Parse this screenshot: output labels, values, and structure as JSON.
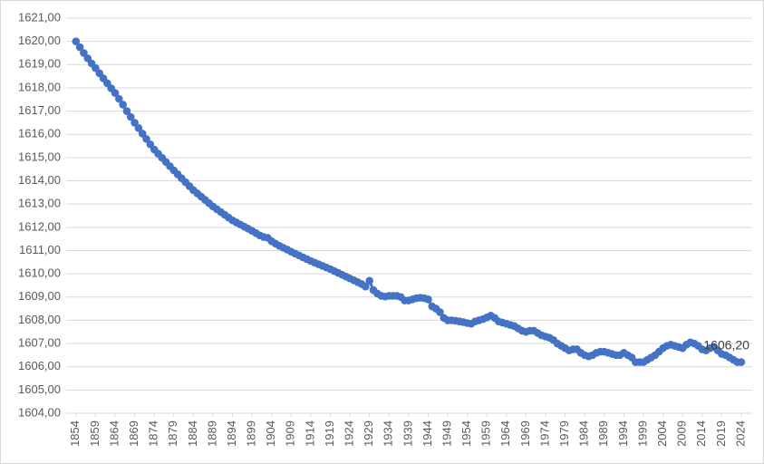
{
  "chart_data": {
    "type": "line",
    "color": "#4472c4",
    "grid": true,
    "x": [
      1854,
      1855,
      1856,
      1857,
      1858,
      1859,
      1860,
      1861,
      1862,
      1863,
      1864,
      1865,
      1866,
      1867,
      1868,
      1869,
      1870,
      1871,
      1872,
      1873,
      1874,
      1875,
      1876,
      1877,
      1878,
      1879,
      1880,
      1881,
      1882,
      1883,
      1884,
      1885,
      1886,
      1887,
      1888,
      1889,
      1890,
      1891,
      1892,
      1893,
      1894,
      1895,
      1896,
      1897,
      1898,
      1899,
      1900,
      1901,
      1902,
      1903,
      1904,
      1905,
      1906,
      1907,
      1908,
      1909,
      1910,
      1911,
      1912,
      1913,
      1914,
      1915,
      1916,
      1917,
      1918,
      1919,
      1920,
      1921,
      1922,
      1923,
      1924,
      1925,
      1926,
      1927,
      1928,
      1929,
      1930,
      1931,
      1932,
      1933,
      1934,
      1935,
      1936,
      1937,
      1938,
      1939,
      1940,
      1941,
      1942,
      1943,
      1944,
      1945,
      1946,
      1947,
      1948,
      1949,
      1950,
      1951,
      1952,
      1953,
      1954,
      1955,
      1956,
      1957,
      1958,
      1959,
      1960,
      1961,
      1962,
      1963,
      1964,
      1965,
      1966,
      1967,
      1968,
      1969,
      1970,
      1971,
      1972,
      1973,
      1974,
      1975,
      1976,
      1977,
      1978,
      1979,
      1980,
      1981,
      1982,
      1983,
      1984,
      1985,
      1986,
      1987,
      1988,
      1989,
      1990,
      1991,
      1992,
      1993,
      1994,
      1995,
      1996,
      1997,
      1998,
      1999,
      2000,
      2001,
      2002,
      2003,
      2004,
      2005,
      2006,
      2007,
      2008,
      2009,
      2010,
      2011,
      2012,
      2013,
      2014,
      2015,
      2016,
      2017,
      2018,
      2019,
      2020,
      2021,
      2022,
      2023,
      2024
    ],
    "values": [
      1620.0,
      1619.75,
      1619.5,
      1619.27,
      1619.05,
      1618.85,
      1618.63,
      1618.41,
      1618.2,
      1617.98,
      1617.78,
      1617.53,
      1617.28,
      1617.0,
      1616.75,
      1616.5,
      1616.27,
      1616.03,
      1615.8,
      1615.57,
      1615.35,
      1615.17,
      1614.99,
      1614.81,
      1614.63,
      1614.45,
      1614.28,
      1614.11,
      1613.94,
      1613.77,
      1613.6,
      1613.46,
      1613.32,
      1613.18,
      1613.04,
      1612.9,
      1612.78,
      1612.66,
      1612.54,
      1612.42,
      1612.3,
      1612.21,
      1612.12,
      1612.03,
      1611.94,
      1611.85,
      1611.75,
      1611.65,
      1611.58,
      1611.55,
      1611.4,
      1611.3,
      1611.2,
      1611.12,
      1611.04,
      1610.95,
      1610.87,
      1610.79,
      1610.71,
      1610.63,
      1610.55,
      1610.48,
      1610.41,
      1610.34,
      1610.27,
      1610.2,
      1610.12,
      1610.04,
      1609.96,
      1609.88,
      1609.8,
      1609.72,
      1609.64,
      1609.56,
      1609.45,
      1609.7,
      1609.3,
      1609.15,
      1609.05,
      1609.02,
      1609.05,
      1609.05,
      1609.05,
      1609.0,
      1608.85,
      1608.85,
      1608.9,
      1608.95,
      1608.97,
      1608.95,
      1608.9,
      1608.6,
      1608.5,
      1608.35,
      1608.1,
      1608.0,
      1608.0,
      1607.98,
      1607.95,
      1607.92,
      1607.88,
      1607.85,
      1607.95,
      1608.0,
      1608.05,
      1608.12,
      1608.2,
      1608.1,
      1607.95,
      1607.9,
      1607.85,
      1607.8,
      1607.75,
      1607.65,
      1607.55,
      1607.5,
      1607.55,
      1607.55,
      1607.45,
      1607.35,
      1607.3,
      1607.25,
      1607.15,
      1607.0,
      1606.9,
      1606.8,
      1606.7,
      1606.75,
      1606.75,
      1606.6,
      1606.5,
      1606.45,
      1606.5,
      1606.6,
      1606.65,
      1606.65,
      1606.6,
      1606.55,
      1606.5,
      1606.5,
      1606.6,
      1606.5,
      1606.4,
      1606.2,
      1606.2,
      1606.2,
      1606.3,
      1606.4,
      1606.5,
      1606.65,
      1606.8,
      1606.9,
      1606.95,
      1606.9,
      1606.85,
      1606.8,
      1606.95,
      1607.05,
      1607.0,
      1606.9,
      1606.75,
      1606.7,
      1606.8,
      1606.85,
      1606.7,
      1606.55,
      1606.5,
      1606.4,
      1606.3,
      1606.2,
      1606.2
    ],
    "value_labels": [
      null,
      null,
      null,
      null,
      null,
      null,
      null,
      null,
      null,
      null,
      null,
      null,
      null,
      null,
      null,
      null,
      null,
      null,
      null,
      null,
      null,
      null,
      null,
      null,
      null,
      null,
      null,
      null,
      null,
      null,
      null,
      null,
      null,
      null,
      null,
      null,
      null,
      null,
      null,
      null,
      null,
      null,
      null,
      null,
      null,
      null,
      null,
      null,
      null,
      null,
      null,
      null,
      null,
      null,
      null,
      null,
      null,
      null,
      null,
      null,
      null,
      null,
      null,
      null,
      null,
      null,
      null,
      null,
      null,
      null,
      null,
      null,
      null,
      null,
      null,
      null,
      null,
      null,
      null,
      null,
      null,
      null,
      null,
      null,
      null,
      null,
      null,
      null,
      null,
      null,
      null,
      null,
      null,
      null,
      null,
      null,
      null,
      null,
      null,
      null,
      null,
      null,
      null,
      null,
      null,
      null,
      null,
      null,
      null,
      null,
      null,
      null,
      null,
      null,
      null,
      null,
      null,
      null,
      null,
      null,
      null,
      null,
      null,
      null,
      null,
      null,
      null,
      null,
      null,
      null,
      null,
      null,
      null,
      null,
      null,
      null,
      null,
      null,
      null,
      null,
      null,
      null,
      null,
      null,
      null,
      null,
      null,
      null,
      null,
      null,
      null,
      null,
      null,
      null,
      null,
      null,
      null,
      null,
      null,
      null,
      null,
      null,
      null,
      null,
      null,
      null,
      null,
      null,
      null,
      null,
      "1606,20"
    ],
    "xlim": [
      1851.5,
      2026.8
    ],
    "xticks": [
      1854,
      1859,
      1864,
      1869,
      1874,
      1879,
      1884,
      1889,
      1894,
      1899,
      1904,
      1909,
      1914,
      1919,
      1924,
      1929,
      1934,
      1939,
      1944,
      1949,
      1954,
      1959,
      1964,
      1969,
      1974,
      1979,
      1984,
      1989,
      1994,
      1999,
      2004,
      2009,
      2014,
      2019,
      2024
    ],
    "ylim": [
      1604,
      1621
    ],
    "yticks": [
      {
        "value": 1604,
        "label": "1604,00"
      },
      {
        "value": 1605,
        "label": "1605,00"
      },
      {
        "value": 1606,
        "label": "1606,00"
      },
      {
        "value": 1607,
        "label": "1607,00"
      },
      {
        "value": 1608,
        "label": "1608,00"
      },
      {
        "value": 1609,
        "label": "1609,00"
      },
      {
        "value": 1610,
        "label": "1610,00"
      },
      {
        "value": 1611,
        "label": "1611,00"
      },
      {
        "value": 1612,
        "label": "1612,00"
      },
      {
        "value": 1613,
        "label": "1613,00"
      },
      {
        "value": 1614,
        "label": "1614,00"
      },
      {
        "value": 1615,
        "label": "1615,00"
      },
      {
        "value": 1616,
        "label": "1616,00"
      },
      {
        "value": 1617,
        "label": "1617,00"
      },
      {
        "value": 1618,
        "label": "1618,00"
      },
      {
        "value": 1619,
        "label": "1619,00"
      },
      {
        "value": 1620,
        "label": "1620,00"
      },
      {
        "value": 1621,
        "label": "1621,00"
      }
    ]
  }
}
